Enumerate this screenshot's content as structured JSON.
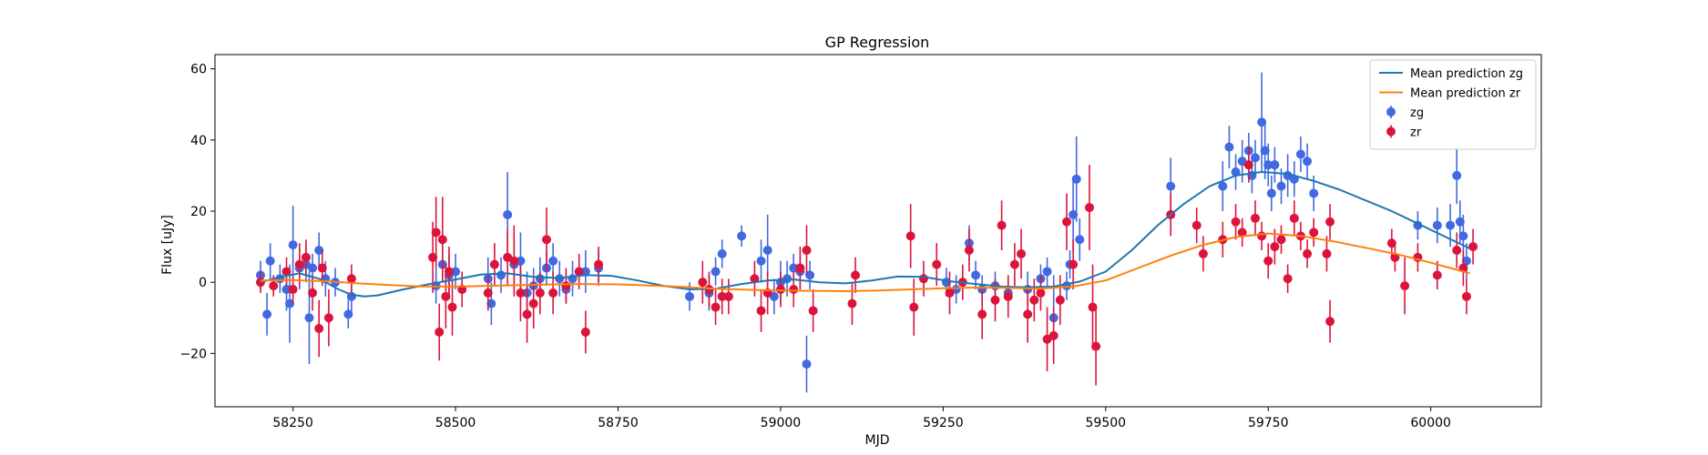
{
  "chart_data": {
    "type": "scatter",
    "title": "GP Regression",
    "xlabel": "MJD",
    "ylabel": "Flux [uJy]",
    "xlim": [
      58130,
      60170
    ],
    "ylim": [
      -35,
      64
    ],
    "xticks": [
      58250,
      58500,
      58750,
      59000,
      59250,
      59500,
      59750,
      60000
    ],
    "yticks": [
      -20,
      0,
      20,
      40,
      60
    ],
    "grid": false,
    "legend_position": "top-right",
    "series": [
      {
        "name": "Mean prediction zg",
        "kind": "line",
        "color": "#1f77b4",
        "x": [
          58200,
          58230,
          58260,
          58290,
          58320,
          58340,
          58360,
          58380,
          58420,
          58460,
          58500,
          58540,
          58580,
          58620,
          58660,
          58700,
          58740,
          58780,
          58820,
          58860,
          58900,
          58940,
          58980,
          59020,
          59060,
          59100,
          59140,
          59180,
          59220,
          59260,
          59300,
          59340,
          59380,
          59420,
          59460,
          59500,
          59540,
          59580,
          59620,
          59660,
          59700,
          59740,
          59780,
          59820,
          59860,
          59900,
          59940,
          59980,
          60020,
          60060
        ],
        "y": [
          0,
          1.5,
          2.5,
          1,
          -2,
          -3.5,
          -4,
          -3.7,
          -2,
          -0.5,
          0.8,
          2.2,
          2.5,
          1.5,
          1.2,
          2,
          1.8,
          0.5,
          -1,
          -2,
          -1.8,
          -0.5,
          0.5,
          0.8,
          0,
          -0.3,
          0.5,
          1.6,
          1.5,
          0.3,
          -0.5,
          -1.2,
          -1.4,
          -1.2,
          0.2,
          3,
          9,
          16,
          22,
          27,
          30,
          31,
          30.5,
          28.5,
          26,
          23,
          20,
          16.5,
          13,
          9.5
        ]
      },
      {
        "name": "Mean prediction zr",
        "kind": "line",
        "color": "#ff7f0e",
        "x": [
          58200,
          58250,
          58300,
          58350,
          58400,
          58450,
          58500,
          58550,
          58600,
          58650,
          58700,
          58750,
          58800,
          58850,
          58900,
          58950,
          59000,
          59050,
          59100,
          59150,
          59200,
          59250,
          59300,
          59350,
          59400,
          59450,
          59500,
          59550,
          59600,
          59650,
          59700,
          59750,
          59800,
          59850,
          59900,
          59950,
          60000,
          60060
        ],
        "y": [
          0.5,
          0.6,
          0.3,
          -0.3,
          -0.8,
          -1.2,
          -1.2,
          -1,
          -0.8,
          -0.6,
          -0.5,
          -0.6,
          -0.9,
          -1.3,
          -1.8,
          -2.1,
          -2.3,
          -2.4,
          -2.5,
          -2.3,
          -2,
          -1.7,
          -1.5,
          -1.6,
          -1.8,
          -1.2,
          0.5,
          4,
          7.5,
          10.5,
          12.7,
          13.7,
          13,
          11.5,
          9.7,
          7.8,
          5.5,
          2.5
        ]
      },
      {
        "name": "zg",
        "kind": "errorbar",
        "color": "#4169e1",
        "points": [
          [
            58200,
            2,
            4
          ],
          [
            58210,
            -9,
            6
          ],
          [
            58215,
            6,
            5
          ],
          [
            58230,
            1,
            4
          ],
          [
            58240,
            -2,
            6
          ],
          [
            58245,
            -6,
            11
          ],
          [
            58250,
            10.5,
            11
          ],
          [
            58260,
            4,
            6
          ],
          [
            58270,
            5,
            5
          ],
          [
            58275,
            -10,
            13
          ],
          [
            58280,
            4,
            4
          ],
          [
            58290,
            9,
            5
          ],
          [
            58300,
            1,
            5
          ],
          [
            58315,
            0,
            4
          ],
          [
            58335,
            -9,
            4
          ],
          [
            58340,
            -4,
            5
          ],
          [
            58470,
            -1,
            5
          ],
          [
            58480,
            5,
            5
          ],
          [
            58490,
            2,
            6
          ],
          [
            58500,
            3,
            5
          ],
          [
            58550,
            1,
            6
          ],
          [
            58555,
            -6,
            6
          ],
          [
            58570,
            2,
            5
          ],
          [
            58580,
            19,
            12
          ],
          [
            58590,
            5,
            7
          ],
          [
            58600,
            6,
            8
          ],
          [
            58610,
            -3,
            6
          ],
          [
            58620,
            -1,
            5
          ],
          [
            58630,
            1,
            6
          ],
          [
            58640,
            4,
            5
          ],
          [
            58650,
            6,
            5
          ],
          [
            58660,
            1,
            5
          ],
          [
            58670,
            -2,
            4
          ],
          [
            58680,
            1,
            5
          ],
          [
            58700,
            3,
            6
          ],
          [
            58720,
            4,
            5
          ],
          [
            58860,
            -4,
            4
          ],
          [
            58890,
            -3,
            5
          ],
          [
            58900,
            3,
            4
          ],
          [
            58910,
            8,
            4
          ],
          [
            58940,
            13,
            3
          ],
          [
            58970,
            6,
            6
          ],
          [
            58980,
            9,
            10
          ],
          [
            58990,
            -4,
            5
          ],
          [
            59000,
            0,
            6
          ],
          [
            59010,
            1,
            5
          ],
          [
            59020,
            4,
            4
          ],
          [
            59030,
            3,
            5
          ],
          [
            59040,
            -23,
            8
          ],
          [
            59045,
            2,
            4
          ],
          [
            59255,
            0,
            4
          ],
          [
            59270,
            -2,
            4
          ],
          [
            59290,
            11,
            5
          ],
          [
            59300,
            2,
            4
          ],
          [
            59310,
            -2,
            4
          ],
          [
            59330,
            -1,
            4
          ],
          [
            59350,
            -3,
            4
          ],
          [
            59380,
            -2,
            5
          ],
          [
            59400,
            1,
            4
          ],
          [
            59410,
            3,
            4
          ],
          [
            59420,
            -10,
            12
          ],
          [
            59440,
            -1,
            4
          ],
          [
            59445,
            5,
            4
          ],
          [
            59450,
            19,
            10
          ],
          [
            59455,
            29,
            12
          ],
          [
            59460,
            12,
            6
          ],
          [
            59600,
            27,
            8
          ],
          [
            59680,
            27,
            7
          ],
          [
            59690,
            38,
            6
          ],
          [
            59700,
            31,
            5
          ],
          [
            59710,
            34,
            6
          ],
          [
            59720,
            37,
            5
          ],
          [
            59725,
            30,
            5
          ],
          [
            59730,
            35,
            5
          ],
          [
            59740,
            45,
            14
          ],
          [
            59745,
            37,
            8
          ],
          [
            59750,
            33,
            6
          ],
          [
            59755,
            25,
            5
          ],
          [
            59760,
            33,
            5
          ],
          [
            59770,
            27,
            5
          ],
          [
            59780,
            30,
            6
          ],
          [
            59790,
            29,
            5
          ],
          [
            59800,
            36,
            5
          ],
          [
            59810,
            34,
            5
          ],
          [
            59820,
            25,
            5
          ],
          [
            59980,
            16,
            4
          ],
          [
            60010,
            16,
            5
          ],
          [
            60030,
            16,
            6
          ],
          [
            60040,
            30,
            8
          ],
          [
            60045,
            17,
            6
          ],
          [
            60050,
            13,
            6
          ],
          [
            60055,
            6,
            5
          ]
        ]
      },
      {
        "name": "zr",
        "kind": "errorbar",
        "color": "#dc143c",
        "points": [
          [
            58200,
            0,
            3
          ],
          [
            58220,
            -1,
            3
          ],
          [
            58240,
            3,
            4
          ],
          [
            58250,
            -2,
            4
          ],
          [
            58260,
            5,
            6
          ],
          [
            58270,
            7,
            5
          ],
          [
            58280,
            -3,
            5
          ],
          [
            58290,
            -13,
            8
          ],
          [
            58295,
            4,
            5
          ],
          [
            58305,
            -10,
            8
          ],
          [
            58340,
            1,
            4
          ],
          [
            58465,
            7,
            10
          ],
          [
            58470,
            14,
            10
          ],
          [
            58475,
            -14,
            8
          ],
          [
            58480,
            12,
            12
          ],
          [
            58485,
            -4,
            9
          ],
          [
            58490,
            3,
            7
          ],
          [
            58495,
            -7,
            8
          ],
          [
            58510,
            -2,
            5
          ],
          [
            58550,
            -3,
            5
          ],
          [
            58560,
            5,
            6
          ],
          [
            58580,
            7,
            8
          ],
          [
            58590,
            6,
            10
          ],
          [
            58600,
            -3,
            8
          ],
          [
            58610,
            -9,
            8
          ],
          [
            58620,
            -6,
            7
          ],
          [
            58630,
            -3,
            6
          ],
          [
            58640,
            12,
            9
          ],
          [
            58650,
            -3,
            6
          ],
          [
            58670,
            -1,
            5
          ],
          [
            58690,
            3,
            5
          ],
          [
            58700,
            -14,
            6
          ],
          [
            58720,
            5,
            5
          ],
          [
            58880,
            0,
            6
          ],
          [
            58890,
            -2,
            5
          ],
          [
            58900,
            -7,
            5
          ],
          [
            58910,
            -4,
            5
          ],
          [
            58920,
            -4,
            5
          ],
          [
            58960,
            1,
            5
          ],
          [
            58970,
            -8,
            6
          ],
          [
            58980,
            -3,
            6
          ],
          [
            59000,
            -2,
            5
          ],
          [
            59020,
            -2,
            5
          ],
          [
            59030,
            4,
            6
          ],
          [
            59040,
            9,
            7
          ],
          [
            59050,
            -8,
            6
          ],
          [
            59110,
            -6,
            6
          ],
          [
            59115,
            2,
            5
          ],
          [
            59200,
            13,
            9
          ],
          [
            59205,
            -7,
            8
          ],
          [
            59220,
            1,
            5
          ],
          [
            59240,
            5,
            6
          ],
          [
            59260,
            -3,
            6
          ],
          [
            59280,
            0,
            5
          ],
          [
            59290,
            9,
            6
          ],
          [
            59310,
            -9,
            7
          ],
          [
            59330,
            -5,
            6
          ],
          [
            59340,
            16,
            7
          ],
          [
            59350,
            -4,
            6
          ],
          [
            59360,
            5,
            6
          ],
          [
            59370,
            8,
            7
          ],
          [
            59380,
            -9,
            8
          ],
          [
            59390,
            -5,
            6
          ],
          [
            59400,
            -3,
            5
          ],
          [
            59410,
            -16,
            9
          ],
          [
            59420,
            -15,
            8
          ],
          [
            59430,
            -5,
            7
          ],
          [
            59440,
            17,
            8
          ],
          [
            59450,
            5,
            7
          ],
          [
            59475,
            21,
            12
          ],
          [
            59480,
            -7,
            12
          ],
          [
            59485,
            -18,
            11
          ],
          [
            59600,
            19,
            6
          ],
          [
            59640,
            16,
            5
          ],
          [
            59650,
            8,
            5
          ],
          [
            59680,
            12,
            5
          ],
          [
            59700,
            17,
            5
          ],
          [
            59710,
            14,
            4
          ],
          [
            59720,
            33,
            5
          ],
          [
            59730,
            18,
            5
          ],
          [
            59740,
            13,
            4
          ],
          [
            59750,
            6,
            5
          ],
          [
            59760,
            10,
            5
          ],
          [
            59770,
            12,
            4
          ],
          [
            59780,
            1,
            4
          ],
          [
            59790,
            18,
            5
          ],
          [
            59800,
            13,
            4
          ],
          [
            59810,
            8,
            4
          ],
          [
            59820,
            14,
            4
          ],
          [
            59840,
            8,
            5
          ],
          [
            59845,
            17,
            5
          ],
          [
            59845,
            -11,
            6
          ],
          [
            59940,
            11,
            4
          ],
          [
            59945,
            7,
            4
          ],
          [
            59960,
            -1,
            8
          ],
          [
            59980,
            7,
            4
          ],
          [
            60010,
            2,
            4
          ],
          [
            60040,
            9,
            5
          ],
          [
            60050,
            4,
            5
          ],
          [
            60055,
            -4,
            5
          ],
          [
            60065,
            10,
            5
          ]
        ]
      }
    ]
  }
}
